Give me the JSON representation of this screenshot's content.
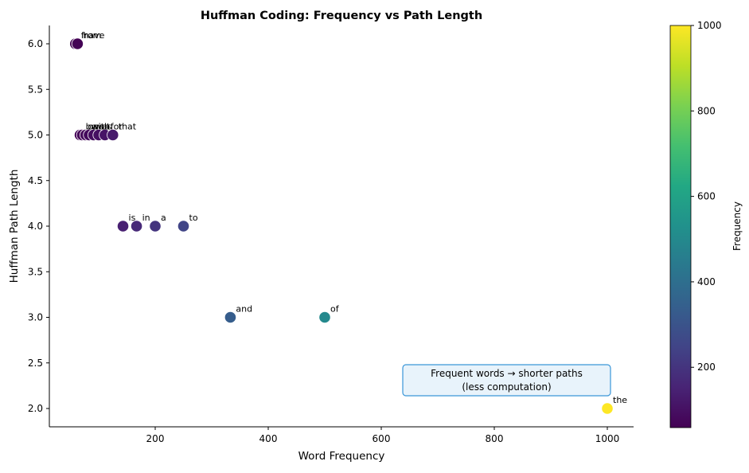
{
  "chart_data": {
    "type": "scatter",
    "title": "Huffman Coding: Frequency vs Path Length",
    "xlabel": "Word Frequency",
    "ylabel": "Huffman Path Length",
    "xlim": [
      13,
      1046
    ],
    "ylim": [
      1.8,
      6.2
    ],
    "xticks": [
      200,
      400,
      600,
      800,
      1000
    ],
    "yticks": [
      2.0,
      2.5,
      3.0,
      3.5,
      4.0,
      4.5,
      5.0,
      5.5,
      6.0
    ],
    "xtick_labels": [
      "200",
      "400",
      "600",
      "800",
      "1000"
    ],
    "ytick_labels": [
      "2.0",
      "2.5",
      "3.0",
      "3.5",
      "4.0",
      "4.5",
      "5.0",
      "5.5",
      "6.0"
    ],
    "grid": false,
    "colormap": "viridis",
    "colorbar": {
      "label": "Frequency",
      "vmin": 58.8,
      "vmax": 1000,
      "ticks": [
        200,
        400,
        600,
        800,
        1000
      ],
      "tick_labels": [
        "200",
        "400",
        "600",
        "800",
        "1000"
      ]
    },
    "points": [
      {
        "word": "the",
        "frequency": 1000,
        "path_length": 2
      },
      {
        "word": "of",
        "frequency": 500,
        "path_length": 3
      },
      {
        "word": "and",
        "frequency": 333,
        "path_length": 3
      },
      {
        "word": "to",
        "frequency": 250,
        "path_length": 4
      },
      {
        "word": "a",
        "frequency": 200,
        "path_length": 4
      },
      {
        "word": "in",
        "frequency": 167,
        "path_length": 4
      },
      {
        "word": "is",
        "frequency": 143,
        "path_length": 4
      },
      {
        "word": "that",
        "frequency": 125,
        "path_length": 5
      },
      {
        "word": "for",
        "frequency": 111,
        "path_length": 5
      },
      {
        "word": "it",
        "frequency": 100,
        "path_length": 5
      },
      {
        "word": "as",
        "frequency": 91,
        "path_length": 5
      },
      {
        "word": "was",
        "frequency": 83,
        "path_length": 5
      },
      {
        "word": "with",
        "frequency": 77,
        "path_length": 5
      },
      {
        "word": "on",
        "frequency": 71,
        "path_length": 5
      },
      {
        "word": "be",
        "frequency": 67,
        "path_length": 5
      },
      {
        "word": "have",
        "frequency": 62.5,
        "path_length": 6
      },
      {
        "word": "from",
        "frequency": 58.8,
        "path_length": 6
      }
    ],
    "annotation": {
      "line1": "Frequent words → shorter paths",
      "line2": "(less computation)",
      "border_color": "#3a96d8",
      "fill_color": "#e8f3fb"
    }
  }
}
